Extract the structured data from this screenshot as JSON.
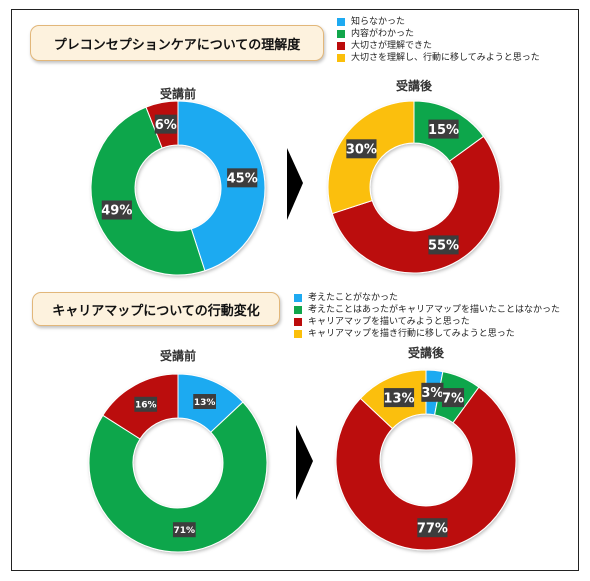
{
  "colors": {
    "blue": "#1eaaf1",
    "green": "#11a64b",
    "red": "#bb0b0b",
    "yellow": "#fbbf0a"
  },
  "sections": [
    {
      "title": "プレコンセプションケアについての理解度",
      "legend": [
        {
          "label": "知らなかった",
          "color": "#1eaaf1"
        },
        {
          "label": "内容がわかった",
          "color": "#11a64b"
        },
        {
          "label": "大切さが理解できた",
          "color": "#bb0b0b"
        },
        {
          "label": "大切さを理解し、行動に移してみようと思った",
          "color": "#fbbf0a"
        }
      ]
    },
    {
      "title": "キャリアマップについての行動変化",
      "legend": [
        {
          "label": "考えたことがなかった",
          "color": "#1eaaf1"
        },
        {
          "label": "考えたことはあったがキャリアマップを描いたことはなかった",
          "color": "#11a64b"
        },
        {
          "label": "キャリアマップを描いてみようと思った",
          "color": "#bb0b0b"
        },
        {
          "label": "キャリアマップを描き行動に移してみようと思った",
          "color": "#fbbf0a"
        }
      ]
    }
  ],
  "chart_data": [
    {
      "type": "pie",
      "subtitle": "受講前",
      "categories": [
        "知らなかった",
        "内容がわかった",
        "大切さが理解できた",
        "大切さを理解し、行動に移してみようと思った"
      ],
      "values": [
        45,
        49,
        6,
        0
      ],
      "labels": [
        "45%",
        "49%",
        "6%",
        ""
      ]
    },
    {
      "type": "pie",
      "subtitle": "受講後",
      "categories": [
        "知らなかった",
        "内容がわかった",
        "大切さが理解できた",
        "大切さを理解し、行動に移してみようと思った"
      ],
      "values": [
        0,
        15,
        55,
        30
      ],
      "labels": [
        "",
        "15%",
        "55%",
        "30%"
      ]
    },
    {
      "type": "pie",
      "subtitle": "受講前",
      "categories": [
        "考えたことがなかった",
        "考えたことはあったがキャリアマップを描いたことはなかった",
        "キャリアマップを描いてみようと思った",
        "キャリアマップを描き行動に移してみようと思った"
      ],
      "values": [
        13,
        71,
        16,
        0
      ],
      "labels": [
        "13%",
        "71%",
        "16%",
        ""
      ]
    },
    {
      "type": "pie",
      "subtitle": "受講後",
      "categories": [
        "考えたことがなかった",
        "考えたことはあったがキャリアマップを描いたことはなかった",
        "キャリアマップを描いてみようと思った",
        "キャリアマップを描き行動に移してみようと思った"
      ],
      "values": [
        3,
        7,
        77,
        13
      ],
      "labels": [
        "3%",
        "7%",
        "77%",
        "13%"
      ]
    }
  ]
}
